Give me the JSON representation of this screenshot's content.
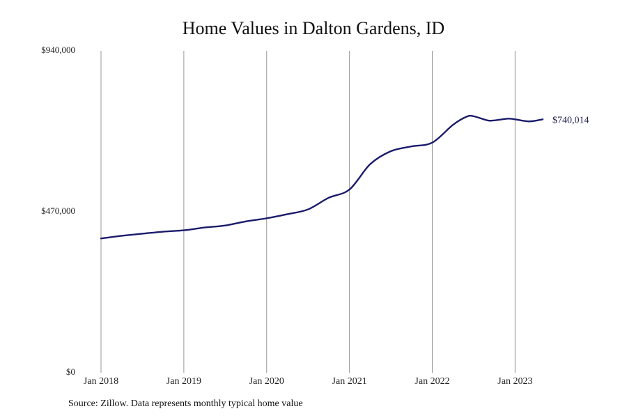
{
  "chart_data": {
    "type": "line",
    "title": "Home Values in Dalton Gardens, ID",
    "xlabel": "",
    "ylabel": "",
    "ylim": [
      0,
      940000
    ],
    "xlim": [
      "2018-01",
      "2023-05"
    ],
    "y_ticks": [
      {
        "value": 0,
        "label": "$0"
      },
      {
        "value": 470000,
        "label": "$470,000"
      },
      {
        "value": 940000,
        "label": "$940,000"
      }
    ],
    "x_ticks": [
      {
        "value": "2018-01",
        "label": "Jan 2018"
      },
      {
        "value": "2019-01",
        "label": "Jan 2019"
      },
      {
        "value": "2020-01",
        "label": "Jan 2020"
      },
      {
        "value": "2021-01",
        "label": "Jan 2021"
      },
      {
        "value": "2022-01",
        "label": "Jan 2022"
      },
      {
        "value": "2023-01",
        "label": "Jan 2023"
      }
    ],
    "grid": {
      "vertical": true,
      "horizontal": false
    },
    "line_color": "#1b1b6b",
    "series": [
      {
        "values": [
          {
            "x": "2018-01",
            "y": 392000
          },
          {
            "x": "2018-04",
            "y": 400000
          },
          {
            "x": "2018-07",
            "y": 406000
          },
          {
            "x": "2018-10",
            "y": 412000
          },
          {
            "x": "2019-01",
            "y": 416000
          },
          {
            "x": "2019-04",
            "y": 424000
          },
          {
            "x": "2019-07",
            "y": 430000
          },
          {
            "x": "2019-10",
            "y": 442000
          },
          {
            "x": "2020-01",
            "y": 451000
          },
          {
            "x": "2020-04",
            "y": 463000
          },
          {
            "x": "2020-07",
            "y": 477000
          },
          {
            "x": "2020-10",
            "y": 511000
          },
          {
            "x": "2021-01",
            "y": 535000
          },
          {
            "x": "2021-04",
            "y": 609000
          },
          {
            "x": "2021-07",
            "y": 647000
          },
          {
            "x": "2021-10",
            "y": 661000
          },
          {
            "x": "2022-01",
            "y": 672000
          },
          {
            "x": "2022-04",
            "y": 724000
          },
          {
            "x": "2022-06",
            "y": 748000
          },
          {
            "x": "2022-07",
            "y": 749000
          },
          {
            "x": "2022-09",
            "y": 737000
          },
          {
            "x": "2022-10",
            "y": 737000
          },
          {
            "x": "2022-12",
            "y": 742000
          },
          {
            "x": "2023-01",
            "y": 740000
          },
          {
            "x": "2023-03",
            "y": 734000
          },
          {
            "x": "2023-05",
            "y": 740014
          }
        ]
      }
    ],
    "annotations": [
      {
        "text": "$740,014",
        "x": "2023-05",
        "y": 740014
      }
    ],
    "source_note": "Source: Zillow. Data represents monthly typical home value"
  }
}
